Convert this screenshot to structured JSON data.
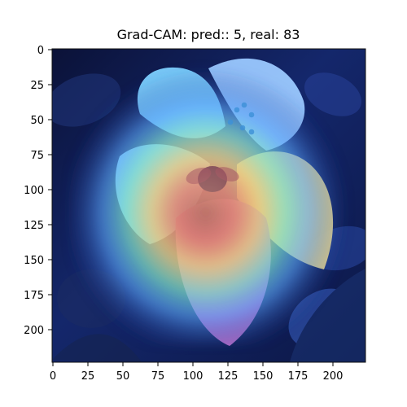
{
  "figure": {
    "title": "Grad-CAM: pred:: 5, real: 83",
    "image_kind": "flower photo with heatmap overlay",
    "colors": {
      "frame": "#111111",
      "background": "#ffffff"
    }
  },
  "chart_data": {
    "type": "heatmap",
    "title": "Grad-CAM: pred:: 5, real: 83",
    "xlabel": "",
    "ylabel": "",
    "xlim": [
      0,
      223
    ],
    "ylim": [
      223,
      0
    ],
    "grid": false,
    "x_ticks": [
      0,
      25,
      50,
      75,
      100,
      125,
      150,
      175,
      200
    ],
    "y_ticks": [
      0,
      25,
      50,
      75,
      100,
      125,
      150,
      175,
      200
    ]
  }
}
